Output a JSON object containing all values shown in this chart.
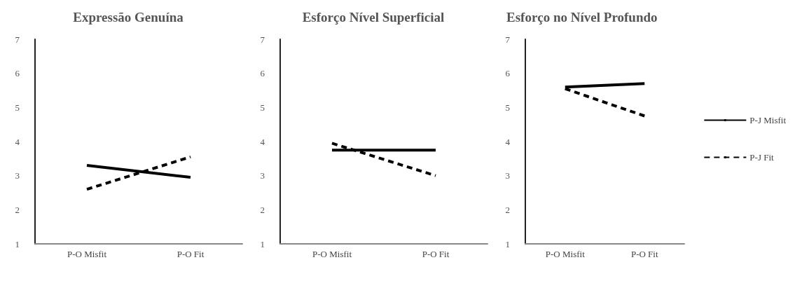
{
  "chart_data": [
    {
      "type": "line",
      "title": "Expressão Genuína",
      "categories": [
        "P-O Misfit",
        "P-O Fit"
      ],
      "ylim": [
        1,
        7
      ],
      "yticks": [
        1,
        2,
        3,
        4,
        5,
        6,
        7
      ],
      "grid": false,
      "legend": false,
      "marker": "none",
      "series": [
        {
          "color": "#000000",
          "line_style": "solid",
          "values": [
            3.3,
            2.95
          ]
        },
        {
          "color": "#000000",
          "line_style": "dashed",
          "values": [
            2.6,
            3.55
          ]
        }
      ]
    },
    {
      "type": "line",
      "title": "Esforço Nível Superficial",
      "categories": [
        "P-O Misfit",
        "P-O Fit"
      ],
      "ylim": [
        1,
        7
      ],
      "yticks": [
        1,
        2,
        3,
        4,
        5,
        6,
        7
      ],
      "grid": false,
      "legend": false,
      "marker": "none",
      "series": [
        {
          "color": "#000000",
          "line_style": "solid",
          "values": [
            3.75,
            3.75
          ]
        },
        {
          "color": "#000000",
          "line_style": "dashed",
          "values": [
            3.95,
            3.0
          ]
        }
      ]
    },
    {
      "type": "line",
      "title": "Esforço no Nível Profundo",
      "categories": [
        "P-O Misfit",
        "P-O Fit"
      ],
      "ylim": [
        1,
        7
      ],
      "yticks": [
        1,
        2,
        3,
        4,
        5,
        6,
        7
      ],
      "grid": false,
      "legend": "right",
      "marker": "none",
      "series": [
        {
          "name": "P-J Misfit",
          "color": "#000000",
          "line_style": "solid",
          "values": [
            5.6,
            5.7
          ]
        },
        {
          "name": "P-J Fit",
          "color": "#000000",
          "line_style": "dashed",
          "values": [
            5.55,
            4.75
          ]
        }
      ]
    }
  ]
}
